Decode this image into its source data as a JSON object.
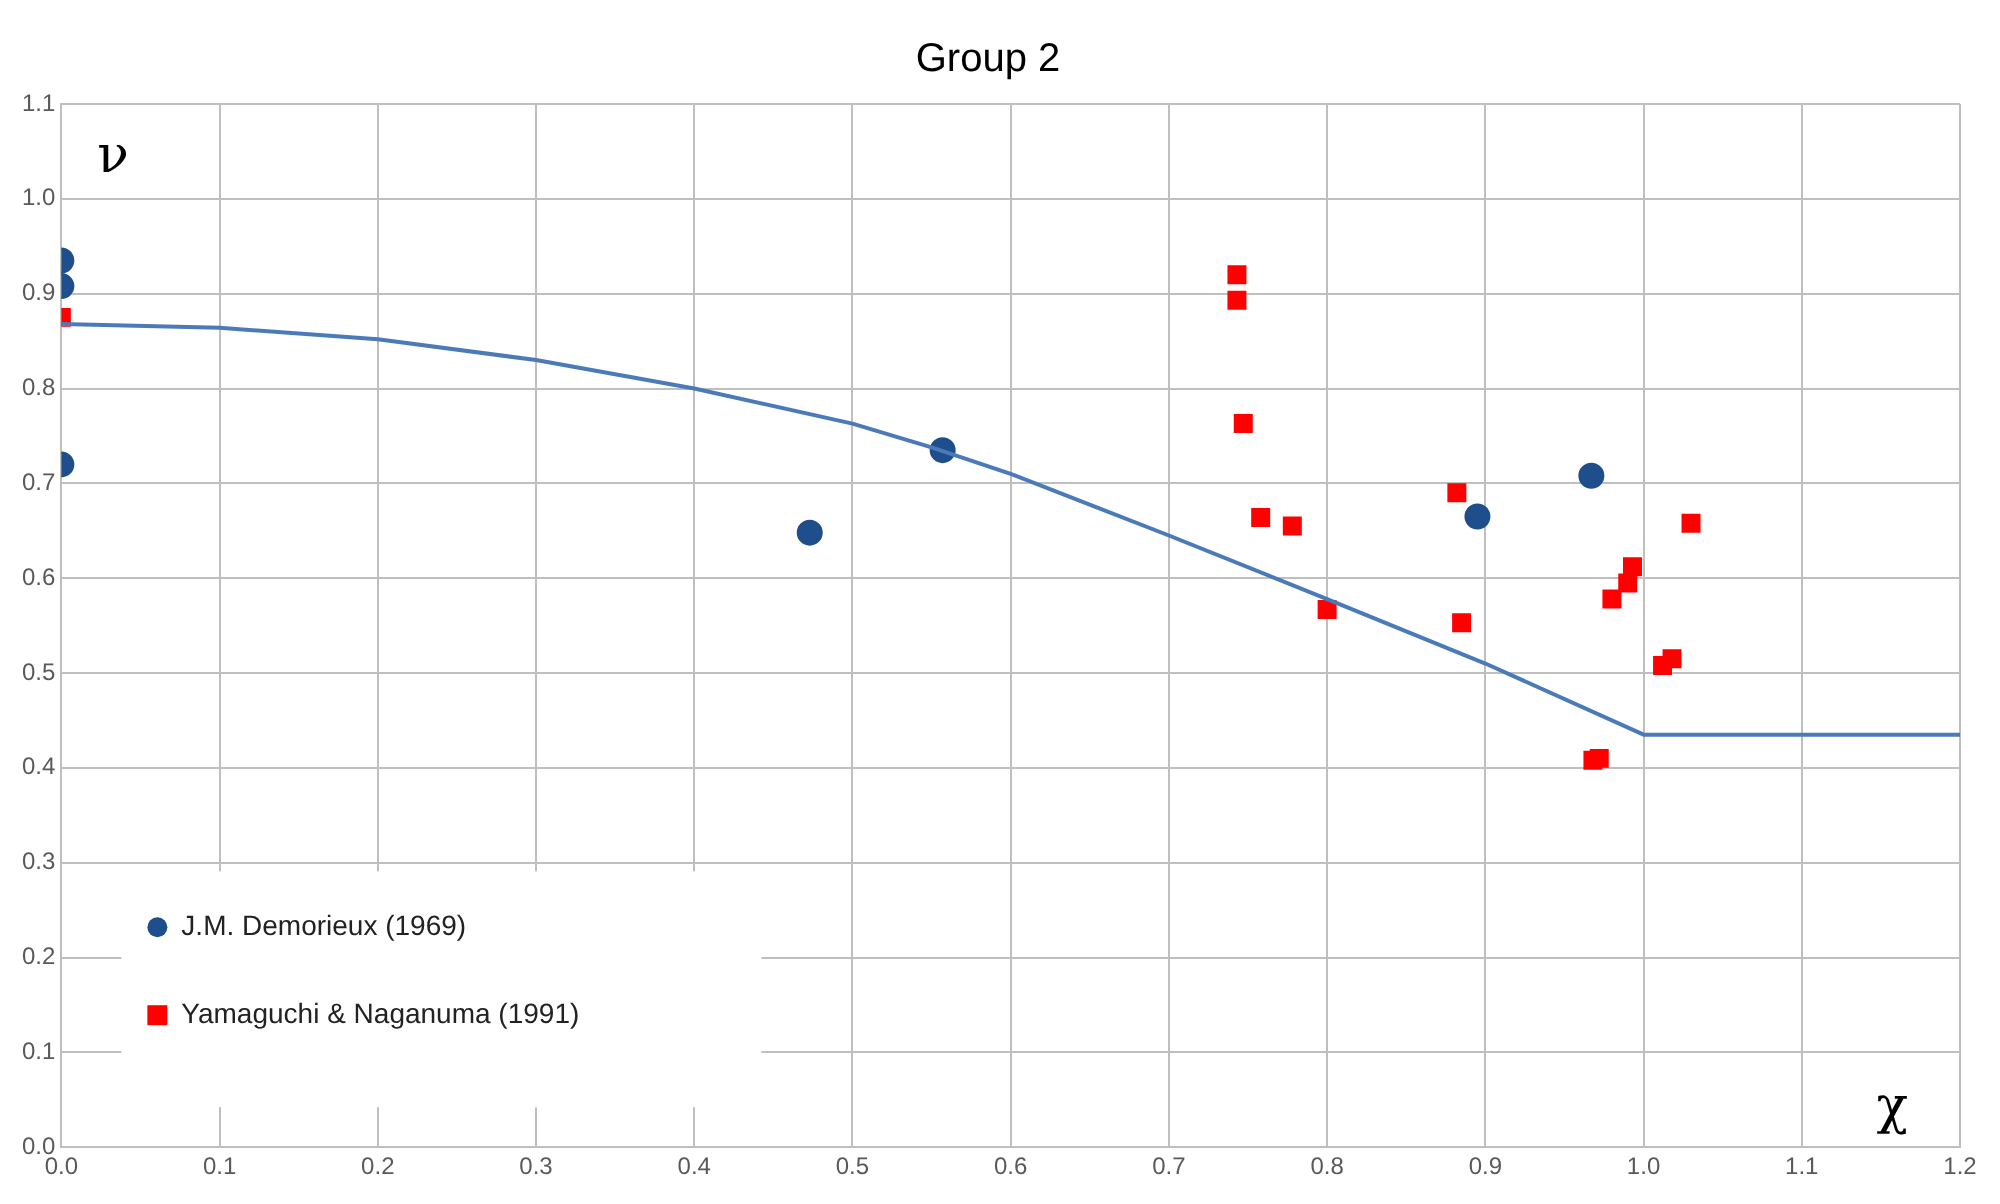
{
  "chart_data": {
    "type": "scatter",
    "title": "Group 2",
    "xlabel": "χ",
    "ylabel": "ν",
    "xlim": [
      0,
      1.2
    ],
    "ylim": [
      0,
      1.1
    ],
    "xticks": [
      {
        "value": 0,
        "label": "0.0"
      },
      {
        "value": 0.1,
        "label": "0.1"
      },
      {
        "value": 0.2,
        "label": "0.2"
      },
      {
        "value": 0.3,
        "label": "0.3"
      },
      {
        "value": 0.4,
        "label": "0.4"
      },
      {
        "value": 0.5,
        "label": "0.5"
      },
      {
        "value": 0.6,
        "label": "0.6"
      },
      {
        "value": 0.7,
        "label": "0.7"
      },
      {
        "value": 0.8,
        "label": "0.8"
      },
      {
        "value": 0.9,
        "label": "0.9"
      },
      {
        "value": 1,
        "label": "1.0"
      },
      {
        "value": 1.1,
        "label": "1.1"
      },
      {
        "value": 1.2,
        "label": "1.2"
      }
    ],
    "yticks": [
      {
        "value": 0,
        "label": "0.0"
      },
      {
        "value": 0.1,
        "label": "0.1"
      },
      {
        "value": 0.2,
        "label": "0.2"
      },
      {
        "value": 0.3,
        "label": "0.3"
      },
      {
        "value": 0.4,
        "label": "0.4"
      },
      {
        "value": 0.5,
        "label": "0.5"
      },
      {
        "value": 0.6,
        "label": "0.6"
      },
      {
        "value": 0.7,
        "label": "0.7"
      },
      {
        "value": 0.8,
        "label": "0.8"
      },
      {
        "value": 0.9,
        "label": "0.9"
      },
      {
        "value": 1,
        "label": "1.0"
      },
      {
        "value": 1.1,
        "label": "1.1"
      }
    ],
    "grid": true,
    "legend": "bottom left",
    "series": [
      {
        "name": "J.M. Demorieux (1969)",
        "color": "#1f4e8c",
        "marker": "circle",
        "x": [
          0,
          0,
          0,
          0.473,
          0.557,
          0.895,
          0.967
        ],
        "values": [
          0.935,
          0.908,
          0.72,
          0.648,
          0.735,
          0.665,
          0.708
        ]
      },
      {
        "name": "Yamaguchi & Naganuma (1991)",
        "color": "#ff0000",
        "marker": "square",
        "x": [
          0,
          0.743,
          0.743,
          0.747,
          0.758,
          0.778,
          0.8,
          0.882,
          0.885,
          0.968,
          0.972,
          0.98,
          0.99,
          0.993,
          1.012,
          1.018,
          1.03
        ],
        "values": [
          0.875,
          0.92,
          0.893,
          0.763,
          0.664,
          0.655,
          0.567,
          0.69,
          0.553,
          0.408,
          0.41,
          0.578,
          0.595,
          0.612,
          0.508,
          0.515,
          0.658
        ]
      },
      {
        "type": "line",
        "color": "#4a7ab8",
        "marker": "none",
        "x": [
          0,
          0.1,
          0.2,
          0.3,
          0.4,
          0.5,
          0.55,
          0.6,
          0.7,
          0.8,
          0.9,
          1.0,
          1.2
        ],
        "values": [
          0.868,
          0.864,
          0.852,
          0.83,
          0.8,
          0.763,
          0.738,
          0.71,
          0.645,
          0.578,
          0.51,
          0.435,
          0.435
        ]
      }
    ]
  }
}
